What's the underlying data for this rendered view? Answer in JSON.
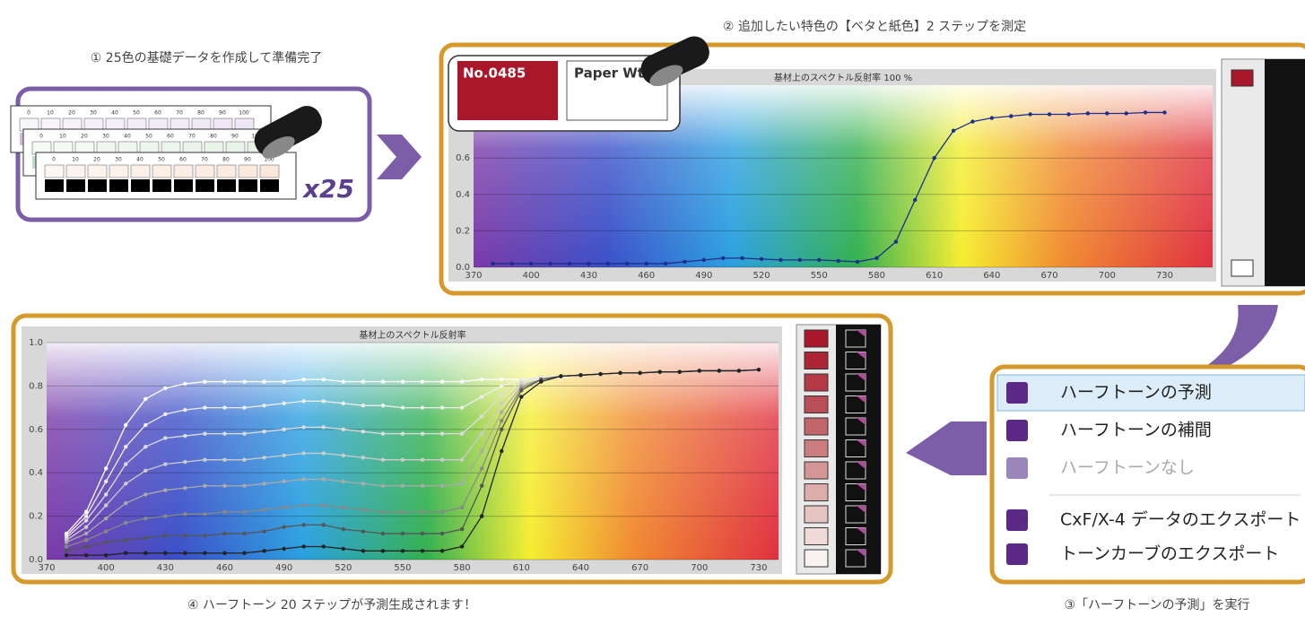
{
  "steps": [
    "① 25色の基礎データを作成して準備完了",
    "② 追加したい特色の【ベタと紙色】2 ステップを測定",
    "③「ハーフトーンの予測」を実行",
    "④ ハーフトーン 20 ステップが予測生成されます！"
  ],
  "strip_labels": [
    0,
    10,
    20,
    30,
    40,
    50,
    60,
    70,
    80,
    90,
    100
  ],
  "multiplier": "x25",
  "swatch_labels": [
    "No.0485",
    "Paper Wt"
  ],
  "menu": [
    {
      "label": "ハーフトーンの予測",
      "enabled": true,
      "selected": true
    },
    {
      "label": "ハーフトーンの補間",
      "enabled": true,
      "selected": false
    },
    {
      "label": "ハーフトーンなし",
      "enabled": false,
      "selected": false
    },
    {
      "label": "CxF/X-4 データのエクスポート",
      "enabled": true,
      "selected": false
    },
    {
      "label": "トーンカーブのエクスポート",
      "enabled": true,
      "selected": false
    }
  ],
  "chart_data": [
    {
      "type": "line",
      "title": "基材上のスペクトル反射率 100 %",
      "x": [
        380,
        390,
        400,
        410,
        420,
        430,
        440,
        450,
        460,
        470,
        480,
        490,
        500,
        510,
        520,
        530,
        540,
        550,
        560,
        570,
        580,
        590,
        600,
        610,
        620,
        630,
        640,
        650,
        660,
        670,
        680,
        690,
        700,
        710,
        720,
        730
      ],
      "series": [
        {
          "color": "#1c2f8c",
          "values": [
            0.02,
            0.02,
            0.02,
            0.02,
            0.02,
            0.02,
            0.02,
            0.02,
            0.02,
            0.02,
            0.03,
            0.04,
            0.05,
            0.05,
            0.045,
            0.04,
            0.04,
            0.04,
            0.035,
            0.03,
            0.05,
            0.14,
            0.37,
            0.6,
            0.75,
            0.8,
            0.82,
            0.83,
            0.84,
            0.84,
            0.84,
            0.845,
            0.845,
            0.845,
            0.85,
            0.85
          ]
        }
      ],
      "xlim": [
        370,
        755
      ],
      "ylim": [
        0,
        1
      ],
      "xticks": [
        370,
        400,
        430,
        460,
        490,
        520,
        550,
        580,
        610,
        640,
        670,
        700,
        730
      ],
      "yticks": [
        {
          "value": 0,
          "label": "0.0"
        },
        0.2,
        0.4,
        0.6
      ],
      "grid": true
    },
    {
      "type": "line",
      "title": "基材上のスペクトル反射率",
      "x": [
        380,
        390,
        400,
        410,
        420,
        430,
        440,
        450,
        460,
        470,
        480,
        490,
        500,
        510,
        520,
        530,
        540,
        550,
        560,
        570,
        580,
        590,
        600,
        610,
        620,
        630,
        640,
        650,
        660,
        670,
        680,
        690,
        700,
        710,
        720,
        730
      ],
      "series": [
        {
          "color": "#ffffff",
          "values": [
            0.12,
            0.22,
            0.42,
            0.62,
            0.74,
            0.79,
            0.81,
            0.82,
            0.82,
            0.82,
            0.82,
            0.82,
            0.83,
            0.83,
            0.82,
            0.82,
            0.82,
            0.82,
            0.82,
            0.82,
            0.82,
            0.83,
            0.83,
            0.83,
            0.83,
            0.84,
            0.85,
            0.855,
            0.86,
            0.86,
            0.865,
            0.865,
            0.87,
            0.87,
            0.87,
            0.875
          ]
        },
        {
          "color": "#eeeeee",
          "values": [
            0.11,
            0.2,
            0.36,
            0.52,
            0.62,
            0.67,
            0.69,
            0.7,
            0.7,
            0.7,
            0.71,
            0.72,
            0.73,
            0.73,
            0.72,
            0.71,
            0.71,
            0.7,
            0.7,
            0.7,
            0.7,
            0.75,
            0.8,
            0.83,
            0.84,
            0.845,
            0.85,
            0.855,
            0.86,
            0.86,
            0.865,
            0.865,
            0.87,
            0.87,
            0.87,
            0.875
          ]
        },
        {
          "color": "#dddddd",
          "values": [
            0.1,
            0.18,
            0.3,
            0.44,
            0.52,
            0.56,
            0.57,
            0.58,
            0.58,
            0.58,
            0.59,
            0.6,
            0.61,
            0.61,
            0.6,
            0.59,
            0.58,
            0.58,
            0.58,
            0.58,
            0.58,
            0.66,
            0.76,
            0.82,
            0.84,
            0.845,
            0.85,
            0.855,
            0.86,
            0.86,
            0.865,
            0.865,
            0.87,
            0.87,
            0.87,
            0.875
          ]
        },
        {
          "color": "#cccccc",
          "values": [
            0.09,
            0.15,
            0.25,
            0.35,
            0.41,
            0.44,
            0.45,
            0.46,
            0.46,
            0.46,
            0.47,
            0.48,
            0.49,
            0.49,
            0.48,
            0.47,
            0.46,
            0.46,
            0.46,
            0.46,
            0.46,
            0.58,
            0.72,
            0.81,
            0.83,
            0.845,
            0.85,
            0.855,
            0.86,
            0.86,
            0.865,
            0.865,
            0.87,
            0.87,
            0.87,
            0.875
          ]
        },
        {
          "color": "#aaaaaa",
          "values": [
            0.08,
            0.12,
            0.19,
            0.26,
            0.3,
            0.32,
            0.33,
            0.34,
            0.34,
            0.34,
            0.35,
            0.36,
            0.37,
            0.37,
            0.36,
            0.35,
            0.34,
            0.34,
            0.34,
            0.34,
            0.35,
            0.5,
            0.68,
            0.8,
            0.83,
            0.845,
            0.85,
            0.855,
            0.86,
            0.86,
            0.865,
            0.865,
            0.87,
            0.87,
            0.87,
            0.875
          ]
        },
        {
          "color": "#888888",
          "values": [
            0.06,
            0.09,
            0.13,
            0.17,
            0.19,
            0.2,
            0.21,
            0.21,
            0.22,
            0.22,
            0.23,
            0.24,
            0.25,
            0.25,
            0.24,
            0.23,
            0.22,
            0.22,
            0.22,
            0.22,
            0.24,
            0.42,
            0.64,
            0.79,
            0.83,
            0.845,
            0.85,
            0.855,
            0.86,
            0.86,
            0.865,
            0.865,
            0.87,
            0.87,
            0.87,
            0.875
          ]
        },
        {
          "color": "#555555",
          "values": [
            0.04,
            0.06,
            0.08,
            0.09,
            0.1,
            0.11,
            0.11,
            0.11,
            0.12,
            0.12,
            0.13,
            0.15,
            0.16,
            0.16,
            0.14,
            0.13,
            0.12,
            0.12,
            0.12,
            0.12,
            0.14,
            0.34,
            0.6,
            0.78,
            0.83,
            0.845,
            0.85,
            0.855,
            0.86,
            0.86,
            0.865,
            0.865,
            0.87,
            0.87,
            0.87,
            0.875
          ]
        },
        {
          "color": "#222222",
          "values": [
            0.02,
            0.02,
            0.02,
            0.03,
            0.03,
            0.03,
            0.03,
            0.03,
            0.03,
            0.03,
            0.04,
            0.05,
            0.06,
            0.06,
            0.05,
            0.04,
            0.04,
            0.04,
            0.04,
            0.04,
            0.06,
            0.2,
            0.5,
            0.75,
            0.82,
            0.845,
            0.85,
            0.855,
            0.86,
            0.86,
            0.865,
            0.865,
            0.87,
            0.87,
            0.87,
            0.875
          ]
        }
      ],
      "xlim": [
        370,
        740
      ],
      "ylim": [
        0,
        1
      ],
      "xticks": [
        370,
        400,
        430,
        460,
        490,
        520,
        550,
        580,
        610,
        640,
        670,
        700,
        730
      ],
      "yticks": [
        {
          "value": 0,
          "label": "0.0"
        },
        0.2,
        0.4,
        0.6,
        0.8,
        {
          "value": 1,
          "label": "1.0"
        }
      ],
      "grid": true
    }
  ]
}
